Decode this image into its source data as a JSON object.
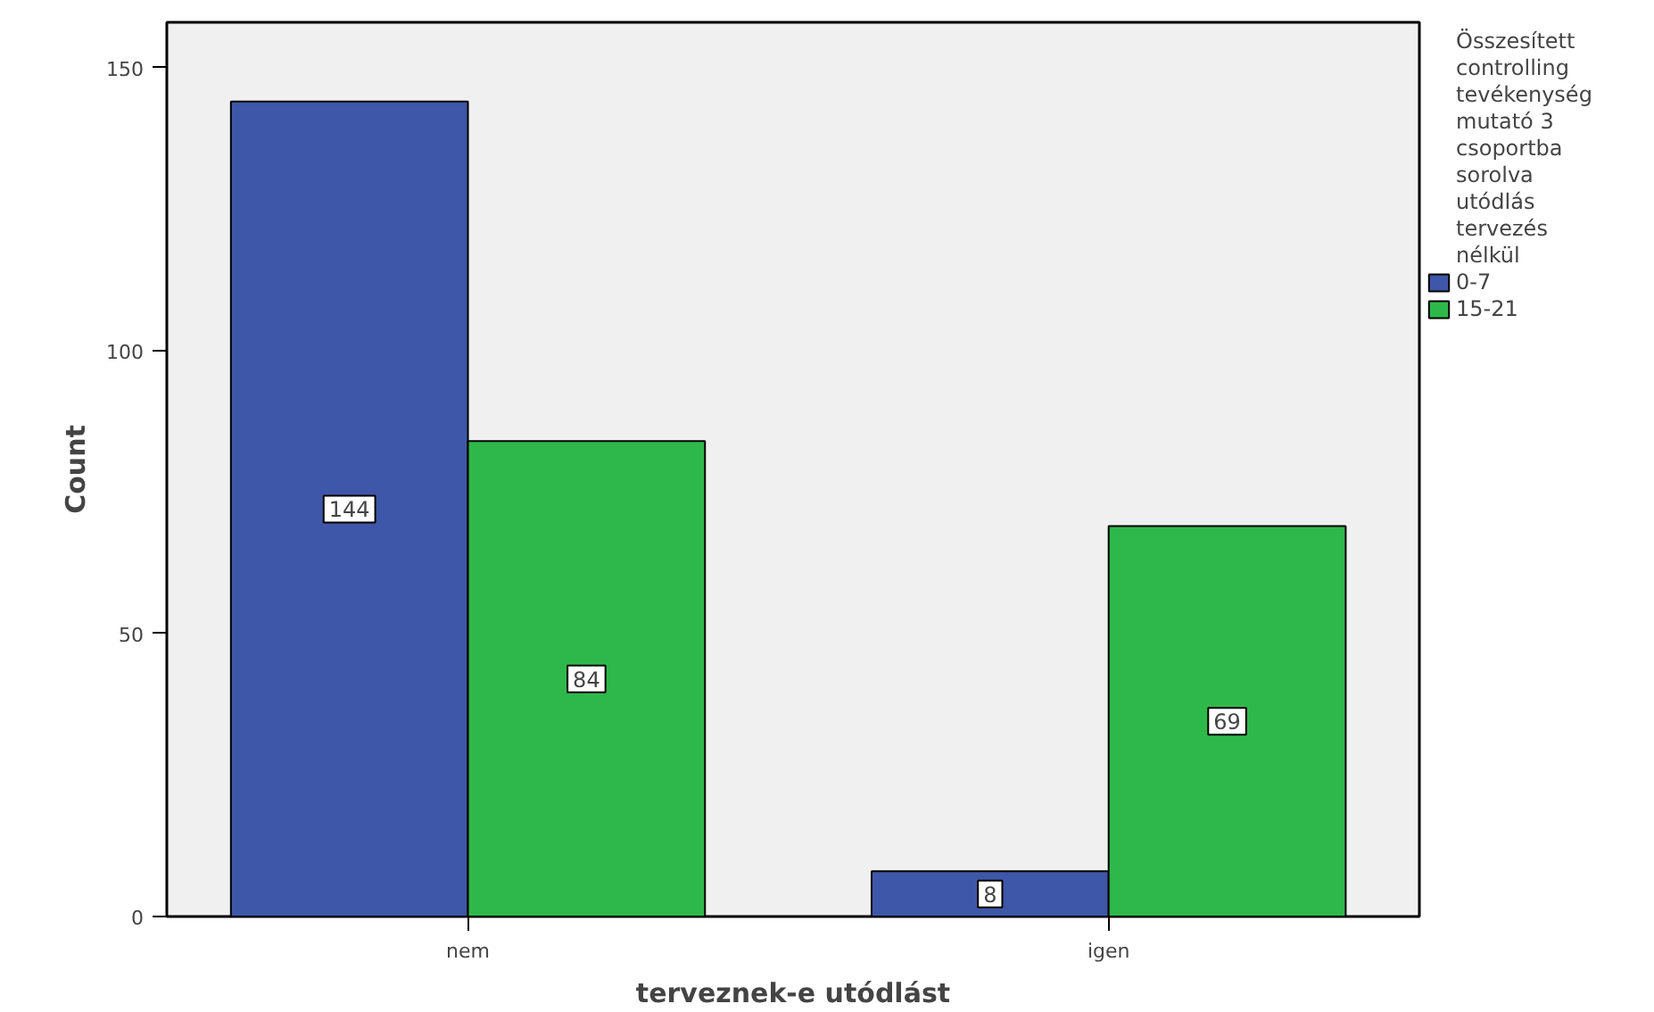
{
  "chart_data": {
    "type": "bar",
    "xlabel": "terveznek-e utódlást",
    "ylabel": "Count",
    "legend_title": "Összesített controlling tevékenység mutató 3 csoportba sorolva utódlás tervezés nélkül",
    "categories": [
      "nem",
      "igen"
    ],
    "series": [
      {
        "name": "0-7",
        "color": "#3f57a8",
        "values": [
          144,
          8
        ]
      },
      {
        "name": "15-21",
        "color": "#2fb84a",
        "values": [
          84,
          69
        ]
      }
    ],
    "ylim": [
      0,
      158
    ],
    "yticks": [
      0,
      50,
      100,
      150
    ],
    "grid": false,
    "legend": "top right",
    "data_labels": true
  }
}
